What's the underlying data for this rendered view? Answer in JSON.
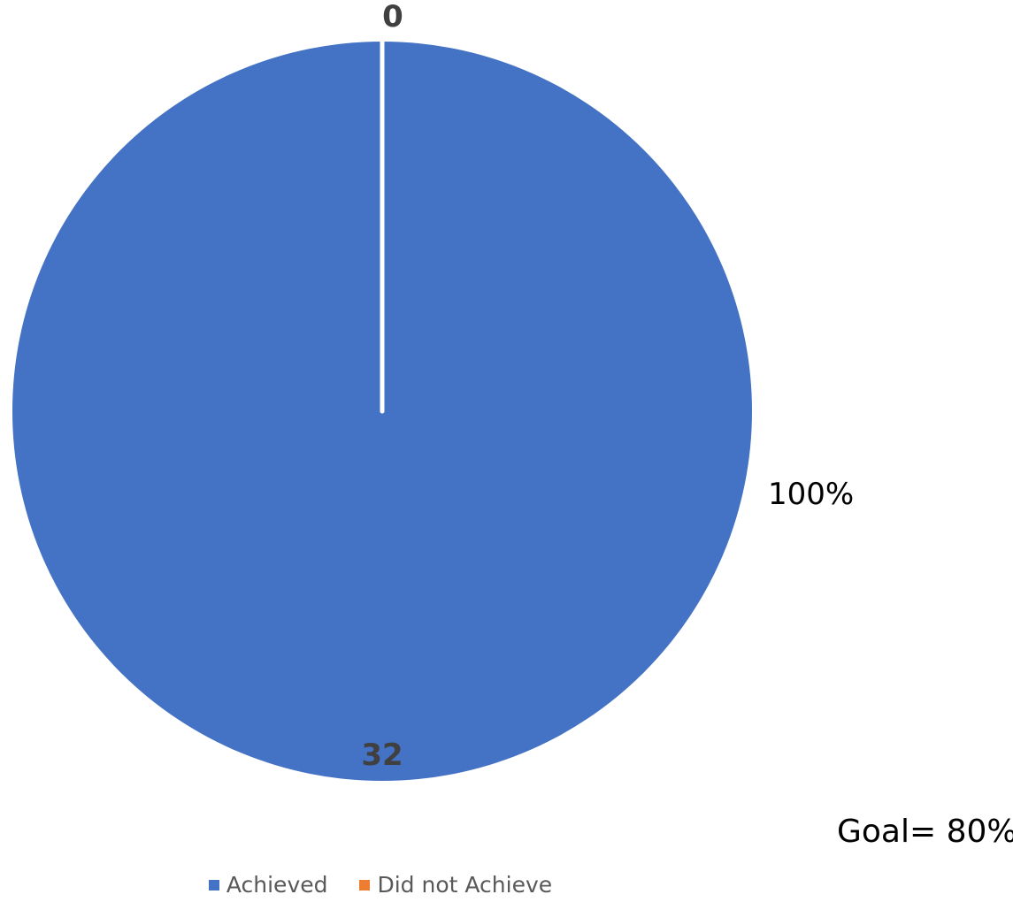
{
  "chart_data": {
    "type": "pie",
    "categories": [
      "Achieved",
      "Did not Achieve"
    ],
    "values": [
      32,
      0
    ],
    "colors": [
      "#4472C4",
      "#ED7D31"
    ],
    "data_labels": [
      "32",
      "0"
    ],
    "percent_labels": [
      "100%",
      ""
    ],
    "legend": {
      "position": "bottom",
      "entries": [
        "Achieved",
        "Did not Achieve"
      ]
    }
  },
  "annotation": {
    "goal_text": "Goal= 80%"
  }
}
